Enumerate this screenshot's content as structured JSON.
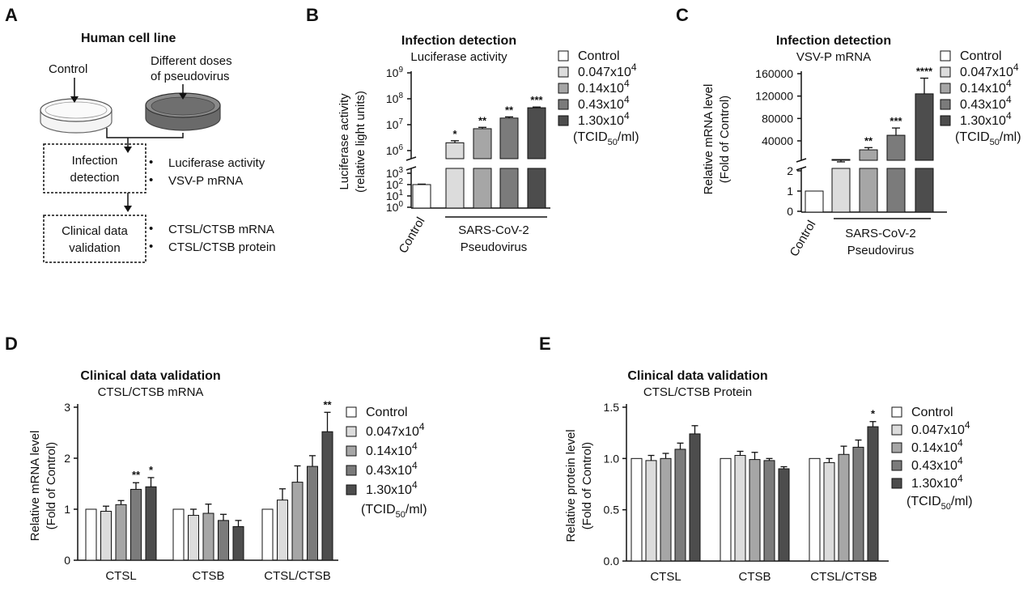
{
  "colors": {
    "control": "#ffffff",
    "d1": "#dcdcdc",
    "d2": "#a6a6a6",
    "d3": "#7b7b7b",
    "d4": "#4d4d4d"
  },
  "icons": {
    "petri_control": "petri-dish-icon",
    "petri_virus": "petri-dish-filled-icon"
  },
  "panel_a": {
    "letter": "A",
    "title": "Human cell line",
    "control_label": "Control",
    "dose_label_1": "Different doses",
    "dose_label_2": "of pseudovirus",
    "box1_line1": "Infection",
    "box1_line2": "detection",
    "box1_items": [
      "Luciferase activity",
      "VSV-P mRNA"
    ],
    "box2_line1": "Clinical data",
    "box2_line2": "validation",
    "box2_items": [
      "CTSL/CTSB mRNA",
      "CTSL/CTSB protein"
    ],
    "bullet": "•"
  },
  "legend": {
    "items": [
      "Control",
      "0.047x10",
      "0.14x10",
      "0.43x10",
      "1.30x10"
    ],
    "exp": "4",
    "units_pre": "(TCID",
    "units_sub": "50",
    "units_post": "/ml)"
  },
  "chart_data": [
    {
      "id": "B",
      "type": "bar",
      "title": "Infection detection",
      "subtitle": "Luciferase activity",
      "ylabel_line1": "Luciferase activity",
      "ylabel_line2": "(relative light units)",
      "yscale": "log (broken axis)",
      "lower_ticks": [
        "10",
        "10",
        "10",
        "10"
      ],
      "lower_exps": [
        "0",
        "1",
        "2",
        "3"
      ],
      "upper_ticks": [
        "10",
        "10",
        "10",
        "10"
      ],
      "upper_exps": [
        "6",
        "7",
        "8",
        "9"
      ],
      "categories": [
        "Control",
        "0.047x10^4",
        "0.14x10^4",
        "0.43x10^4",
        "1.30x10^4"
      ],
      "values": [
        100,
        2000000,
        7000000,
        18000000,
        45000000
      ],
      "errors": [
        10,
        400000,
        900000,
        2000000,
        3000000
      ],
      "significance": [
        "",
        "*",
        "**",
        "**",
        "***"
      ],
      "xlabel_control": "Control",
      "group_label_1": "SARS-CoV-2",
      "group_label_2": "Pseudovirus"
    },
    {
      "id": "C",
      "type": "bar",
      "title": "Infection detection",
      "subtitle": "VSV-P mRNA",
      "ylabel_line1": "Relative mRNA level",
      "ylabel_line2": "(Fold of Control)",
      "yscale": "linear (broken axis)",
      "lower_ticks": [
        "0",
        "1",
        "2"
      ],
      "upper_ticks": [
        "40000",
        "80000",
        "120000",
        "160000"
      ],
      "categories": [
        "Control",
        "0.047x10^4",
        "0.14x10^4",
        "0.43x10^4",
        "1.30x10^4"
      ],
      "values": [
        1,
        2000,
        24000,
        50000,
        124000
      ],
      "errors": [
        0,
        500,
        4000,
        13000,
        28000
      ],
      "significance": [
        "",
        "",
        "**",
        "***",
        "****"
      ],
      "xlabel_control": "Control",
      "group_label_1": "SARS-CoV-2",
      "group_label_2": "Pseudovirus"
    },
    {
      "id": "D",
      "type": "bar",
      "title": "Clinical data validation",
      "subtitle": "CTSL/CTSB mRNA",
      "ylabel_line1": "Relative mRNA level",
      "ylabel_line2": "(Fold of Control)",
      "ylim": [
        0,
        3
      ],
      "yticks": [
        "0",
        "1",
        "2",
        "3"
      ],
      "categories": [
        "CTSL",
        "CTSB",
        "CTSL/CTSB"
      ],
      "series": [
        {
          "values": [
            1.0,
            1.0,
            1.0
          ],
          "errors": [
            0,
            0,
            0
          ],
          "sig": [
            "",
            "",
            ""
          ]
        },
        {
          "values": [
            0.96,
            0.88,
            1.18
          ],
          "errors": [
            0.1,
            0.12,
            0.22
          ],
          "sig": [
            "",
            "",
            ""
          ]
        },
        {
          "values": [
            1.09,
            0.92,
            1.53
          ],
          "errors": [
            0.08,
            0.18,
            0.32
          ],
          "sig": [
            "",
            "",
            ""
          ]
        },
        {
          "values": [
            1.39,
            0.78,
            1.84
          ],
          "errors": [
            0.13,
            0.12,
            0.21
          ],
          "sig": [
            "**",
            "",
            ""
          ]
        },
        {
          "values": [
            1.44,
            0.66,
            2.52
          ],
          "errors": [
            0.18,
            0.12,
            0.38
          ],
          "sig": [
            "*",
            "",
            "**"
          ]
        }
      ]
    },
    {
      "id": "E",
      "type": "bar",
      "title": "Clinical data validation",
      "subtitle": "CTSL/CTSB Protein",
      "ylabel_line1": "Relative protein level",
      "ylabel_line2": "(Fold of Control)",
      "ylim": [
        0,
        1.5
      ],
      "yticks": [
        "0.0",
        "0.5",
        "1.0",
        "1.5"
      ],
      "categories": [
        "CTSL",
        "CTSB",
        "CTSL/CTSB"
      ],
      "series": [
        {
          "values": [
            1.0,
            1.0,
            1.0
          ],
          "errors": [
            0,
            0,
            0
          ],
          "sig": [
            "",
            "",
            ""
          ]
        },
        {
          "values": [
            0.98,
            1.03,
            0.96
          ],
          "errors": [
            0.05,
            0.04,
            0.04
          ],
          "sig": [
            "",
            "",
            ""
          ]
        },
        {
          "values": [
            1.0,
            0.99,
            1.04
          ],
          "errors": [
            0.05,
            0.07,
            0.08
          ],
          "sig": [
            "",
            "",
            ""
          ]
        },
        {
          "values": [
            1.09,
            0.98,
            1.11
          ],
          "errors": [
            0.06,
            0.02,
            0.07
          ],
          "sig": [
            "",
            "",
            ""
          ]
        },
        {
          "values": [
            1.24,
            0.9,
            1.31
          ],
          "errors": [
            0.08,
            0.02,
            0.05
          ],
          "sig": [
            "",
            "",
            "*"
          ]
        }
      ]
    }
  ]
}
